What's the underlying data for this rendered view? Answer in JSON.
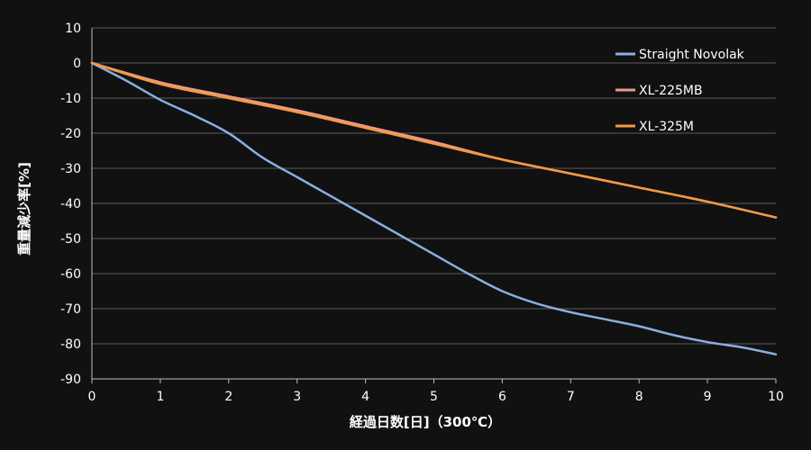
{
  "chart_data": {
    "type": "line",
    "title": "",
    "xlabel": "経過日数[日]（300℃）",
    "ylabel": "重量減少率[%]",
    "xlim": [
      0,
      10
    ],
    "ylim": [
      -90,
      10
    ],
    "x_ticks": [
      0,
      1,
      2,
      3,
      4,
      5,
      6,
      7,
      8,
      9,
      10
    ],
    "y_ticks": [
      10,
      0,
      -10,
      -20,
      -30,
      -40,
      -50,
      -60,
      -70,
      -80,
      -90
    ],
    "grid": "horizontal",
    "legend_position": "top-right",
    "series": [
      {
        "name": "Straight Novolak",
        "color": "#8aaee0",
        "x": [
          0,
          0.5,
          1,
          1.5,
          2,
          2.5,
          3,
          3.5,
          4,
          4.5,
          5,
          5.5,
          6,
          6.5,
          7,
          7.5,
          8,
          8.5,
          9,
          9.5,
          10
        ],
        "values": [
          0,
          -5,
          -10.5,
          -15,
          -20,
          -27,
          -32.5,
          -38,
          -43.5,
          -49,
          -54.5,
          -60,
          -65,
          -68.5,
          -71,
          -73,
          -75,
          -77.5,
          -79.5,
          -81,
          -83
        ]
      },
      {
        "name": "XL-225MB",
        "color": "#e89a90",
        "x": [
          0,
          1,
          2,
          3,
          4,
          5,
          6,
          7,
          8,
          9,
          10
        ],
        "values": [
          0,
          -5.5,
          -9.5,
          -13.5,
          -18,
          -22.5,
          -27.5,
          -31.5,
          -35.5,
          -39.5,
          -44
        ]
      },
      {
        "name": "XL-325M",
        "color": "#f39a40",
        "x": [
          0,
          1,
          2,
          3,
          4,
          5,
          6,
          7,
          8,
          9,
          10
        ],
        "values": [
          0,
          -6,
          -10,
          -14,
          -18.5,
          -23,
          -27.5,
          -31.5,
          -35.5,
          -39.5,
          -44
        ]
      }
    ]
  }
}
